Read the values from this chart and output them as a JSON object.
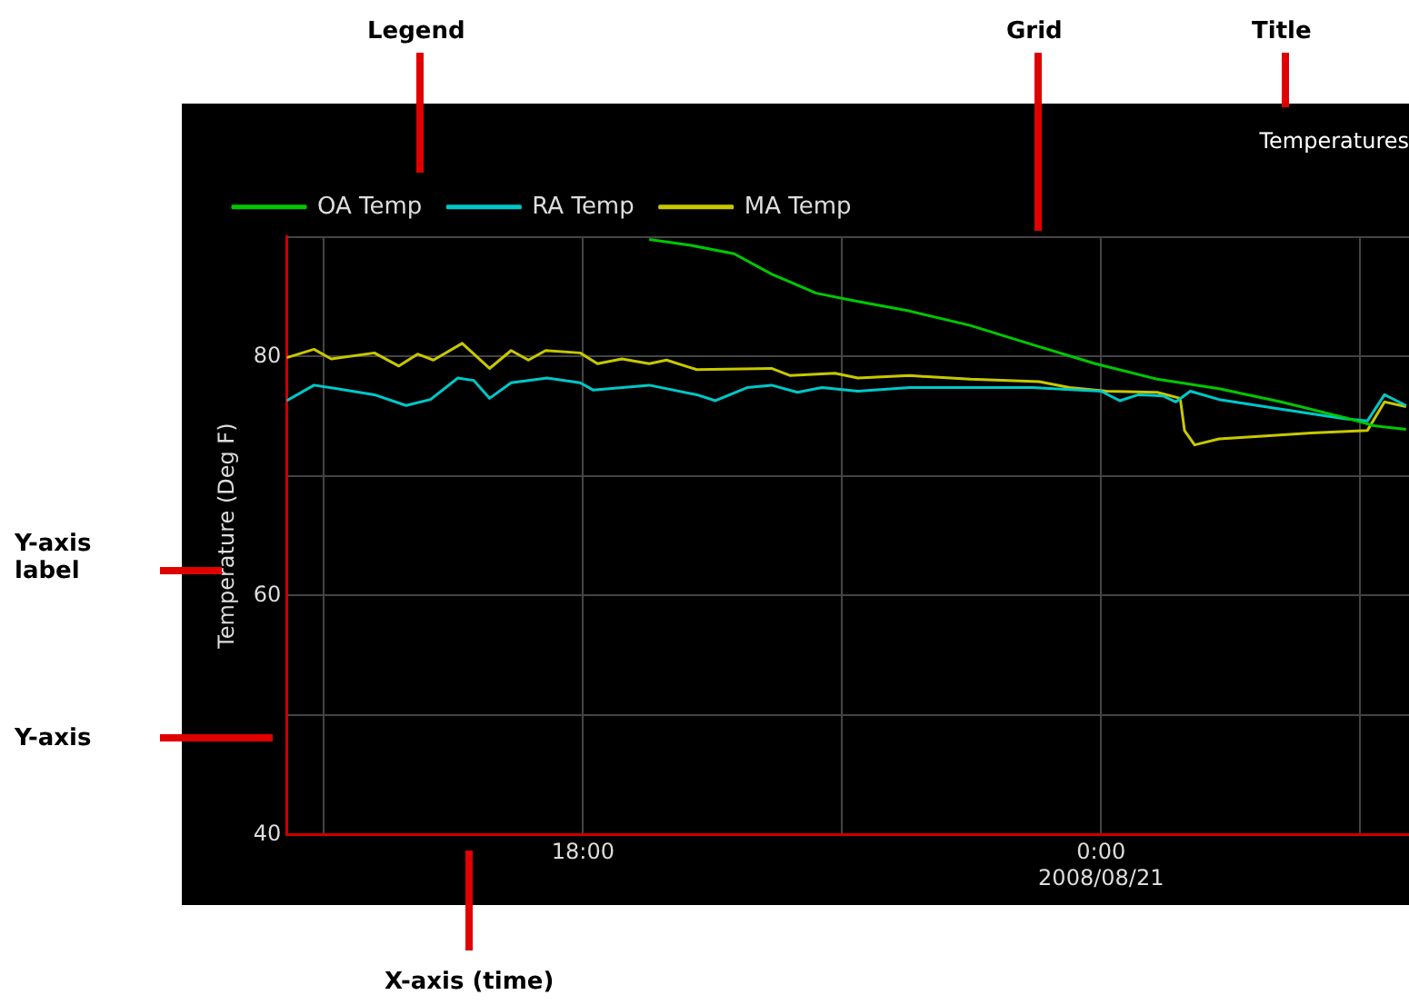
{
  "chart_data": {
    "type": "line",
    "title": "Temperatures",
    "ylabel": "Temperature (Deg F)",
    "annotations": [
      "Legend",
      "Grid",
      "Title",
      "Y-axis label",
      "Y-axis",
      "X-axis (time)"
    ],
    "xlim": [
      "2008-08-20T14:34",
      "2008-08-21T03:34"
    ],
    "xticks": [
      {
        "value": "2008-08-20T15:00",
        "label": null
      },
      {
        "value": "2008-08-20T18:00",
        "label": "18:00"
      },
      {
        "value": "2008-08-20T21:00",
        "label": null
      },
      {
        "value": "2008-08-21T00:00",
        "label": "0:00\n2008/08/21"
      },
      {
        "value": "2008-08-21T03:00",
        "label": null
      }
    ],
    "ylim": [
      40,
      90
    ],
    "yticks": [
      40,
      {
        "value": 50,
        "label": null
      },
      60,
      {
        "value": 70,
        "label": null
      },
      80,
      {
        "value": 90,
        "label": null
      }
    ],
    "grid": true,
    "legend": "top left",
    "series": [
      {
        "name": "OA Temp",
        "color": "#00c800",
        "x": [
          "2008-08-20T18:46",
          "2008-08-20T19:15",
          "2008-08-20T19:45",
          "2008-08-20T20:11",
          "2008-08-20T20:42",
          "2008-08-20T21:11",
          "2008-08-20T21:47",
          "2008-08-20T22:29",
          "2008-08-20T23:12",
          "2008-08-20T23:56",
          "2008-08-21T00:39",
          "2008-08-21T01:22",
          "2008-08-21T02:05",
          "2008-08-21T02:49",
          "2008-08-21T03:10",
          "2008-08-21T03:32"
        ],
        "values": [
          89.8,
          89.3,
          88.6,
          86.9,
          85.3,
          84.6,
          83.8,
          82.6,
          81.0,
          79.4,
          78.1,
          77.3,
          76.2,
          74.9,
          74.2,
          73.9
        ]
      },
      {
        "name": "RA Temp",
        "color": "#00c8c8",
        "x": [
          "2008-08-20T14:34",
          "2008-08-20T14:53",
          "2008-08-20T15:09",
          "2008-08-20T15:35",
          "2008-08-20T15:57",
          "2008-08-20T16:14",
          "2008-08-20T16:33",
          "2008-08-20T16:44",
          "2008-08-20T16:55",
          "2008-08-20T17:10",
          "2008-08-20T17:35",
          "2008-08-20T17:58",
          "2008-08-20T18:07",
          "2008-08-20T18:46",
          "2008-08-20T19:19",
          "2008-08-20T19:32",
          "2008-08-20T19:54",
          "2008-08-20T20:11",
          "2008-08-20T20:29",
          "2008-08-20T20:46",
          "2008-08-20T21:11",
          "2008-08-20T21:47",
          "2008-08-20T23:12",
          "2008-08-21T00:00",
          "2008-08-21T00:13",
          "2008-08-21T00:26",
          "2008-08-21T00:43",
          "2008-08-21T00:52",
          "2008-08-21T01:02",
          "2008-08-21T01:22",
          "2008-08-21T02:05",
          "2008-08-21T02:49",
          "2008-08-21T03:05",
          "2008-08-21T03:17",
          "2008-08-21T03:32"
        ],
        "values": [
          76.3,
          77.6,
          77.3,
          76.8,
          75.9,
          76.4,
          78.2,
          78.0,
          76.5,
          77.8,
          78.2,
          77.8,
          77.2,
          77.6,
          76.8,
          76.3,
          77.4,
          77.6,
          77.0,
          77.4,
          77.1,
          77.4,
          77.4,
          77.1,
          76.3,
          76.8,
          76.7,
          76.2,
          77.1,
          76.4,
          75.6,
          74.8,
          74.6,
          76.8,
          75.9
        ]
      },
      {
        "name": "MA Temp",
        "color": "#c8c800",
        "x": [
          "2008-08-20T14:34",
          "2008-08-20T14:53",
          "2008-08-20T15:05",
          "2008-08-20T15:35",
          "2008-08-20T15:52",
          "2008-08-20T16:05",
          "2008-08-20T16:16",
          "2008-08-20T16:36",
          "2008-08-20T16:55",
          "2008-08-20T17:10",
          "2008-08-20T17:22",
          "2008-08-20T17:34",
          "2008-08-20T17:58",
          "2008-08-20T18:10",
          "2008-08-20T18:27",
          "2008-08-20T18:46",
          "2008-08-20T18:58",
          "2008-08-20T19:19",
          "2008-08-20T20:11",
          "2008-08-20T20:24",
          "2008-08-20T20:55",
          "2008-08-20T21:11",
          "2008-08-20T21:47",
          "2008-08-20T22:29",
          "2008-08-20T23:17",
          "2008-08-20T23:38",
          "2008-08-21T00:04",
          "2008-08-21T00:39",
          "2008-08-21T00:55",
          "2008-08-21T00:58",
          "2008-08-21T01:05",
          "2008-08-21T01:22",
          "2008-08-21T01:47",
          "2008-08-21T02:26",
          "2008-08-21T03:05",
          "2008-08-21T03:17",
          "2008-08-21T03:32"
        ],
        "values": [
          79.9,
          80.6,
          79.8,
          80.3,
          79.2,
          80.2,
          79.7,
          81.1,
          79.0,
          80.5,
          79.7,
          80.5,
          80.3,
          79.4,
          79.8,
          79.4,
          79.7,
          78.9,
          79.0,
          78.4,
          78.6,
          78.2,
          78.4,
          78.1,
          77.9,
          77.4,
          77.1,
          77.0,
          76.5,
          73.8,
          72.6,
          73.1,
          73.3,
          73.6,
          73.8,
          76.2,
          75.8
        ]
      }
    ]
  }
}
